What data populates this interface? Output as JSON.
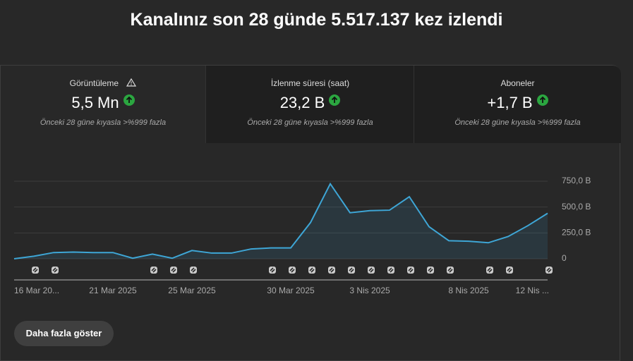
{
  "header": {
    "title": "Kanalınız son 28 günde 5.517.137 kez izlendi"
  },
  "metrics": [
    {
      "label": "Görüntüleme",
      "value": "5,5 Mn",
      "note": "Önceki 28 güne kıyasla >%999 fazla"
    },
    {
      "label": "İzlenme süresi (saat)",
      "value": "23,2 B",
      "note": "Önceki 28 güne kıyasla >%999 fazla"
    },
    {
      "label": "Aboneler",
      "value": "+1,7 B",
      "note": "Önceki 28 güne kıyasla >%999 fazla"
    }
  ],
  "chart_data": {
    "type": "line",
    "categories": [
      "16 Mar 20...",
      null,
      null,
      null,
      null,
      "21 Mar 2025",
      null,
      null,
      null,
      "25 Mar 2025",
      null,
      null,
      null,
      null,
      "30 Mar 2025",
      null,
      null,
      null,
      "3 Nis 2025",
      null,
      null,
      null,
      null,
      "8 Nis 2025",
      null,
      null,
      null,
      "12 Nis ..."
    ],
    "series": [
      {
        "color": "#3ea6d6",
        "values": [
          0,
          25,
          60,
          65,
          60,
          60,
          5,
          45,
          5,
          80,
          55,
          55,
          95,
          105,
          105,
          350,
          725,
          445,
          465,
          470,
          600,
          310,
          175,
          170,
          155,
          215,
          320,
          440
        ]
      }
    ],
    "ylim": [
      0,
      750
    ],
    "yticks": [
      0,
      {
        "value": 250,
        "label": "250,0 B"
      },
      {
        "value": 500,
        "label": "500,0 B"
      },
      {
        "value": 750,
        "label": "750,0 B"
      }
    ],
    "grid": true
  },
  "button": {
    "label": "Daha fazla göster"
  }
}
